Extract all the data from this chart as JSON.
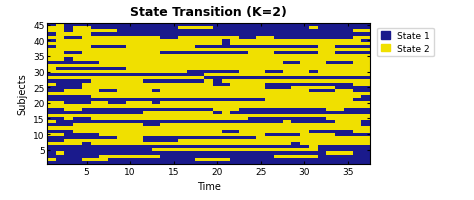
{
  "title": "State Transition (K=2)",
  "xlabel": "Time",
  "ylabel": "Subjects",
  "n_subjects": 45,
  "n_time": 37,
  "color_state1": "#1a1a8c",
  "color_state2": "#f0e000",
  "xticks": [
    5,
    10,
    15,
    20,
    25,
    30,
    35
  ],
  "yticks": [
    5,
    10,
    15,
    20,
    25,
    30,
    35,
    40,
    45
  ],
  "legend_labels": [
    "State 1",
    "State 2"
  ],
  "title_fontsize": 9,
  "axis_fontsize": 7,
  "tick_fontsize": 6.5,
  "state_matrix": [
    [
      1,
      2,
      1,
      1,
      1,
      1,
      1,
      1,
      1,
      1,
      1,
      1,
      1,
      1,
      1,
      1,
      1,
      1,
      1,
      1,
      1,
      1,
      1,
      1,
      1,
      1,
      1,
      1,
      1,
      1,
      1,
      1,
      1,
      1,
      1,
      1,
      1
    ],
    [
      2,
      2,
      1,
      2,
      2,
      1,
      1,
      1,
      1,
      1,
      1,
      1,
      1,
      1,
      1,
      2,
      2,
      2,
      2,
      1,
      1,
      1,
      1,
      1,
      1,
      1,
      1,
      1,
      1,
      1,
      2,
      1,
      1,
      1,
      1,
      1,
      1
    ],
    [
      2,
      2,
      1,
      2,
      2,
      2,
      2,
      2,
      1,
      1,
      1,
      1,
      1,
      1,
      1,
      1,
      1,
      1,
      1,
      1,
      1,
      1,
      1,
      1,
      1,
      1,
      1,
      1,
      1,
      1,
      1,
      1,
      1,
      1,
      1,
      2,
      2
    ],
    [
      1,
      2,
      2,
      2,
      2,
      1,
      1,
      1,
      1,
      1,
      1,
      1,
      1,
      1,
      1,
      1,
      1,
      1,
      1,
      1,
      1,
      1,
      1,
      1,
      1,
      1,
      1,
      1,
      1,
      1,
      1,
      1,
      1,
      1,
      1,
      1,
      1
    ],
    [
      2,
      2,
      1,
      1,
      2,
      2,
      2,
      2,
      2,
      2,
      2,
      2,
      2,
      1,
      1,
      2,
      2,
      2,
      2,
      2,
      2,
      2,
      1,
      1,
      2,
      2,
      1,
      1,
      1,
      1,
      1,
      1,
      1,
      1,
      1,
      2,
      2
    ],
    [
      1,
      2,
      2,
      2,
      2,
      2,
      2,
      2,
      2,
      2,
      2,
      2,
      2,
      2,
      2,
      2,
      2,
      2,
      2,
      2,
      1,
      2,
      2,
      2,
      2,
      2,
      2,
      2,
      2,
      2,
      2,
      2,
      2,
      2,
      2,
      2,
      1
    ],
    [
      2,
      2,
      2,
      2,
      2,
      2,
      2,
      2,
      2,
      2,
      2,
      2,
      2,
      2,
      2,
      2,
      2,
      2,
      2,
      2,
      1,
      2,
      2,
      2,
      2,
      2,
      2,
      2,
      2,
      2,
      2,
      2,
      2,
      2,
      2,
      2,
      2
    ],
    [
      1,
      2,
      2,
      2,
      2,
      1,
      1,
      1,
      1,
      2,
      2,
      2,
      2,
      2,
      2,
      2,
      2,
      1,
      1,
      1,
      1,
      1,
      1,
      1,
      1,
      1,
      1,
      1,
      1,
      1,
      1,
      2,
      2,
      1,
      1,
      1,
      1
    ],
    [
      2,
      2,
      2,
      2,
      2,
      2,
      2,
      2,
      2,
      2,
      2,
      2,
      2,
      2,
      2,
      2,
      2,
      2,
      2,
      2,
      2,
      2,
      2,
      2,
      2,
      2,
      2,
      2,
      2,
      2,
      2,
      2,
      2,
      2,
      2,
      2,
      2
    ],
    [
      2,
      2,
      1,
      1,
      2,
      2,
      2,
      2,
      2,
      2,
      2,
      2,
      2,
      1,
      1,
      1,
      1,
      1,
      1,
      1,
      1,
      1,
      1,
      2,
      2,
      2,
      1,
      1,
      1,
      1,
      1,
      2,
      2,
      1,
      1,
      1,
      1
    ],
    [
      2,
      2,
      2,
      2,
      2,
      2,
      2,
      2,
      2,
      2,
      2,
      2,
      2,
      2,
      2,
      2,
      2,
      2,
      2,
      2,
      2,
      2,
      2,
      2,
      2,
      2,
      2,
      2,
      2,
      2,
      2,
      2,
      2,
      2,
      2,
      2,
      2
    ],
    [
      2,
      2,
      1,
      2,
      2,
      2,
      2,
      2,
      2,
      2,
      2,
      2,
      2,
      2,
      2,
      2,
      2,
      2,
      2,
      2,
      2,
      2,
      2,
      2,
      2,
      2,
      2,
      2,
      2,
      2,
      2,
      2,
      2,
      2,
      2,
      2,
      2
    ],
    [
      1,
      1,
      1,
      1,
      1,
      1,
      2,
      2,
      2,
      2,
      2,
      2,
      2,
      2,
      2,
      2,
      2,
      2,
      2,
      2,
      2,
      2,
      2,
      2,
      2,
      2,
      2,
      1,
      1,
      2,
      2,
      2,
      1,
      1,
      1,
      2,
      2
    ],
    [
      2,
      2,
      2,
      2,
      2,
      2,
      2,
      2,
      2,
      2,
      2,
      2,
      2,
      2,
      2,
      2,
      2,
      2,
      2,
      2,
      2,
      2,
      2,
      2,
      2,
      2,
      2,
      2,
      2,
      2,
      2,
      2,
      2,
      2,
      2,
      2,
      2
    ],
    [
      2,
      1,
      1,
      1,
      1,
      1,
      1,
      1,
      1,
      2,
      2,
      2,
      2,
      2,
      2,
      2,
      2,
      2,
      2,
      2,
      2,
      2,
      2,
      2,
      2,
      2,
      2,
      2,
      2,
      2,
      2,
      2,
      2,
      2,
      2,
      2,
      2
    ],
    [
      2,
      2,
      2,
      2,
      2,
      2,
      2,
      2,
      2,
      2,
      2,
      2,
      2,
      2,
      2,
      2,
      1,
      1,
      1,
      1,
      1,
      1,
      2,
      2,
      2,
      1,
      1,
      2,
      2,
      2,
      1,
      2,
      2,
      2,
      2,
      2,
      2
    ],
    [
      1,
      1,
      1,
      1,
      1,
      1,
      1,
      1,
      1,
      1,
      1,
      1,
      1,
      1,
      1,
      1,
      1,
      1,
      2,
      2,
      2,
      2,
      2,
      2,
      2,
      2,
      2,
      2,
      2,
      2,
      2,
      2,
      2,
      2,
      2,
      2,
      2
    ],
    [
      2,
      2,
      2,
      2,
      2,
      2,
      2,
      2,
      2,
      2,
      2,
      2,
      2,
      2,
      2,
      2,
      2,
      2,
      1,
      1,
      1,
      1,
      1,
      1,
      1,
      1,
      1,
      1,
      1,
      1,
      1,
      1,
      1,
      1,
      1,
      1,
      1
    ],
    [
      1,
      1,
      1,
      1,
      1,
      2,
      2,
      2,
      2,
      2,
      2,
      1,
      1,
      1,
      1,
      1,
      1,
      1,
      2,
      1,
      2,
      2,
      2,
      2,
      2,
      2,
      2,
      2,
      2,
      2,
      2,
      2,
      2,
      2,
      2,
      2,
      2
    ],
    [
      2,
      1,
      1,
      1,
      2,
      2,
      2,
      2,
      2,
      2,
      2,
      2,
      2,
      2,
      2,
      2,
      2,
      2,
      2,
      1,
      1,
      2,
      2,
      2,
      2,
      1,
      1,
      1,
      1,
      1,
      1,
      1,
      1,
      1,
      1,
      2,
      2
    ],
    [
      1,
      1,
      1,
      1,
      2,
      2,
      2,
      2,
      2,
      2,
      2,
      2,
      2,
      2,
      2,
      2,
      2,
      2,
      2,
      2,
      2,
      2,
      2,
      2,
      2,
      1,
      1,
      1,
      2,
      2,
      2,
      2,
      2,
      1,
      1,
      1,
      1
    ],
    [
      1,
      1,
      2,
      2,
      2,
      2,
      1,
      1,
      2,
      2,
      2,
      2,
      1,
      2,
      2,
      2,
      2,
      2,
      2,
      2,
      2,
      2,
      2,
      2,
      2,
      2,
      2,
      2,
      2,
      2,
      1,
      1,
      1,
      2,
      2,
      1,
      1
    ],
    [
      2,
      2,
      2,
      2,
      2,
      2,
      2,
      2,
      2,
      2,
      2,
      2,
      2,
      2,
      2,
      2,
      2,
      2,
      2,
      2,
      2,
      2,
      2,
      2,
      2,
      2,
      2,
      2,
      2,
      2,
      2,
      2,
      2,
      2,
      2,
      2,
      2
    ],
    [
      1,
      1,
      1,
      1,
      1,
      2,
      2,
      2,
      2,
      2,
      2,
      2,
      2,
      2,
      2,
      2,
      2,
      2,
      2,
      2,
      2,
      2,
      2,
      2,
      2,
      2,
      2,
      2,
      2,
      2,
      2,
      2,
      2,
      2,
      2,
      2,
      1
    ],
    [
      1,
      1,
      1,
      1,
      1,
      1,
      1,
      1,
      1,
      1,
      1,
      1,
      1,
      1,
      1,
      1,
      1,
      1,
      1,
      1,
      1,
      1,
      1,
      1,
      1,
      2,
      2,
      2,
      2,
      2,
      2,
      2,
      2,
      2,
      2,
      1,
      1
    ],
    [
      2,
      2,
      1,
      1,
      1,
      2,
      2,
      1,
      1,
      2,
      2,
      2,
      1,
      2,
      2,
      2,
      2,
      2,
      2,
      2,
      2,
      2,
      2,
      2,
      2,
      2,
      2,
      2,
      2,
      2,
      2,
      2,
      2,
      2,
      2,
      2,
      2
    ],
    [
      2,
      2,
      2,
      2,
      2,
      2,
      2,
      2,
      2,
      2,
      2,
      2,
      2,
      2,
      2,
      2,
      2,
      2,
      2,
      2,
      2,
      2,
      2,
      2,
      2,
      2,
      2,
      2,
      2,
      2,
      2,
      2,
      2,
      2,
      2,
      2,
      2
    ],
    [
      1,
      1,
      2,
      2,
      1,
      1,
      1,
      1,
      1,
      1,
      1,
      1,
      1,
      1,
      1,
      1,
      1,
      1,
      1,
      2,
      2,
      2,
      1,
      1,
      1,
      1,
      1,
      1,
      1,
      1,
      1,
      1,
      2,
      2,
      1,
      1,
      1
    ],
    [
      1,
      1,
      1,
      1,
      1,
      1,
      1,
      1,
      1,
      1,
      1,
      2,
      2,
      2,
      2,
      2,
      2,
      2,
      2,
      1,
      2,
      1,
      1,
      1,
      1,
      1,
      1,
      1,
      1,
      1,
      1,
      1,
      1,
      1,
      1,
      1,
      1
    ],
    [
      2,
      2,
      2,
      2,
      2,
      2,
      2,
      2,
      2,
      2,
      2,
      2,
      2,
      2,
      2,
      2,
      2,
      2,
      2,
      2,
      2,
      2,
      2,
      2,
      2,
      2,
      2,
      2,
      2,
      2,
      2,
      2,
      2,
      2,
      2,
      2,
      2
    ],
    [
      1,
      1,
      2,
      1,
      1,
      2,
      2,
      2,
      2,
      2,
      2,
      2,
      2,
      2,
      2,
      2,
      2,
      2,
      2,
      2,
      2,
      2,
      2,
      1,
      1,
      1,
      1,
      1,
      1,
      1,
      1,
      1,
      2,
      2,
      2,
      2,
      2
    ],
    [
      2,
      1,
      1,
      1,
      1,
      1,
      1,
      1,
      1,
      1,
      1,
      1,
      1,
      1,
      1,
      1,
      1,
      1,
      1,
      1,
      1,
      1,
      1,
      1,
      1,
      1,
      1,
      2,
      1,
      1,
      1,
      1,
      1,
      2,
      2,
      2,
      1
    ],
    [
      1,
      1,
      1,
      2,
      2,
      2,
      2,
      2,
      2,
      2,
      2,
      1,
      1,
      2,
      2,
      2,
      2,
      2,
      2,
      2,
      2,
      2,
      2,
      2,
      2,
      2,
      2,
      2,
      2,
      2,
      2,
      2,
      2,
      2,
      2,
      2,
      1
    ],
    [
      2,
      2,
      2,
      2,
      2,
      2,
      2,
      2,
      2,
      2,
      2,
      2,
      2,
      2,
      2,
      2,
      2,
      2,
      2,
      2,
      2,
      2,
      2,
      2,
      2,
      2,
      2,
      2,
      2,
      2,
      2,
      2,
      2,
      2,
      2,
      2,
      2
    ],
    [
      1,
      1,
      1,
      2,
      2,
      2,
      2,
      2,
      2,
      2,
      2,
      2,
      2,
      2,
      2,
      2,
      2,
      2,
      2,
      2,
      1,
      1,
      2,
      2,
      2,
      2,
      2,
      2,
      2,
      2,
      1,
      1,
      1,
      1,
      1,
      2,
      2
    ],
    [
      2,
      2,
      1,
      1,
      1,
      1,
      2,
      2,
      2,
      2,
      2,
      2,
      2,
      2,
      2,
      2,
      2,
      2,
      2,
      2,
      2,
      2,
      2,
      2,
      2,
      1,
      1,
      1,
      1,
      2,
      2,
      2,
      2,
      1,
      1,
      1,
      1
    ],
    [
      1,
      1,
      1,
      1,
      1,
      1,
      1,
      1,
      2,
      2,
      2,
      1,
      1,
      1,
      1,
      1,
      1,
      1,
      1,
      1,
      1,
      1,
      1,
      1,
      2,
      2,
      2,
      2,
      2,
      2,
      2,
      2,
      2,
      2,
      2,
      2,
      2
    ],
    [
      1,
      1,
      2,
      2,
      2,
      2,
      2,
      2,
      2,
      2,
      2,
      1,
      1,
      1,
      1,
      2,
      2,
      2,
      2,
      2,
      2,
      2,
      2,
      2,
      2,
      2,
      2,
      2,
      2,
      2,
      2,
      2,
      2,
      2,
      2,
      2,
      2
    ],
    [
      2,
      2,
      2,
      2,
      1,
      2,
      2,
      2,
      2,
      2,
      2,
      2,
      2,
      2,
      2,
      2,
      2,
      2,
      2,
      2,
      2,
      2,
      2,
      2,
      2,
      2,
      2,
      2,
      1,
      2,
      2,
      2,
      2,
      2,
      2,
      2,
      2
    ],
    [
      1,
      1,
      1,
      1,
      1,
      1,
      1,
      1,
      1,
      1,
      1,
      1,
      1,
      1,
      1,
      1,
      1,
      1,
      1,
      1,
      1,
      1,
      1,
      1,
      1,
      1,
      1,
      1,
      1,
      1,
      2,
      1,
      1,
      1,
      1,
      1,
      1
    ],
    [
      1,
      1,
      1,
      1,
      1,
      1,
      1,
      1,
      1,
      1,
      1,
      1,
      2,
      2,
      2,
      2,
      2,
      2,
      2,
      2,
      2,
      2,
      2,
      2,
      2,
      2,
      2,
      2,
      2,
      2,
      2,
      1,
      1,
      1,
      1,
      1,
      1
    ],
    [
      1,
      2,
      1,
      1,
      1,
      1,
      1,
      1,
      1,
      1,
      1,
      1,
      1,
      1,
      1,
      1,
      1,
      1,
      1,
      1,
      1,
      1,
      1,
      1,
      1,
      1,
      1,
      1,
      1,
      1,
      1,
      1,
      2,
      2,
      2,
      1,
      1
    ],
    [
      1,
      1,
      1,
      1,
      1,
      1,
      2,
      2,
      2,
      2,
      2,
      2,
      2,
      1,
      1,
      1,
      1,
      1,
      1,
      1,
      1,
      1,
      1,
      1,
      1,
      1,
      2,
      2,
      2,
      2,
      2,
      1,
      1,
      1,
      1,
      1,
      1
    ],
    [
      2,
      1,
      1,
      1,
      2,
      2,
      2,
      1,
      1,
      1,
      1,
      1,
      1,
      1,
      1,
      1,
      1,
      2,
      2,
      2,
      2,
      1,
      1,
      1,
      1,
      1,
      1,
      1,
      1,
      1,
      1,
      1,
      1,
      1,
      1,
      1,
      1
    ],
    [
      1,
      1,
      1,
      1,
      1,
      1,
      1,
      1,
      1,
      1,
      1,
      1,
      1,
      1,
      1,
      1,
      1,
      1,
      1,
      1,
      1,
      1,
      1,
      1,
      1,
      1,
      1,
      1,
      1,
      1,
      1,
      1,
      1,
      1,
      1,
      1,
      1
    ]
  ]
}
